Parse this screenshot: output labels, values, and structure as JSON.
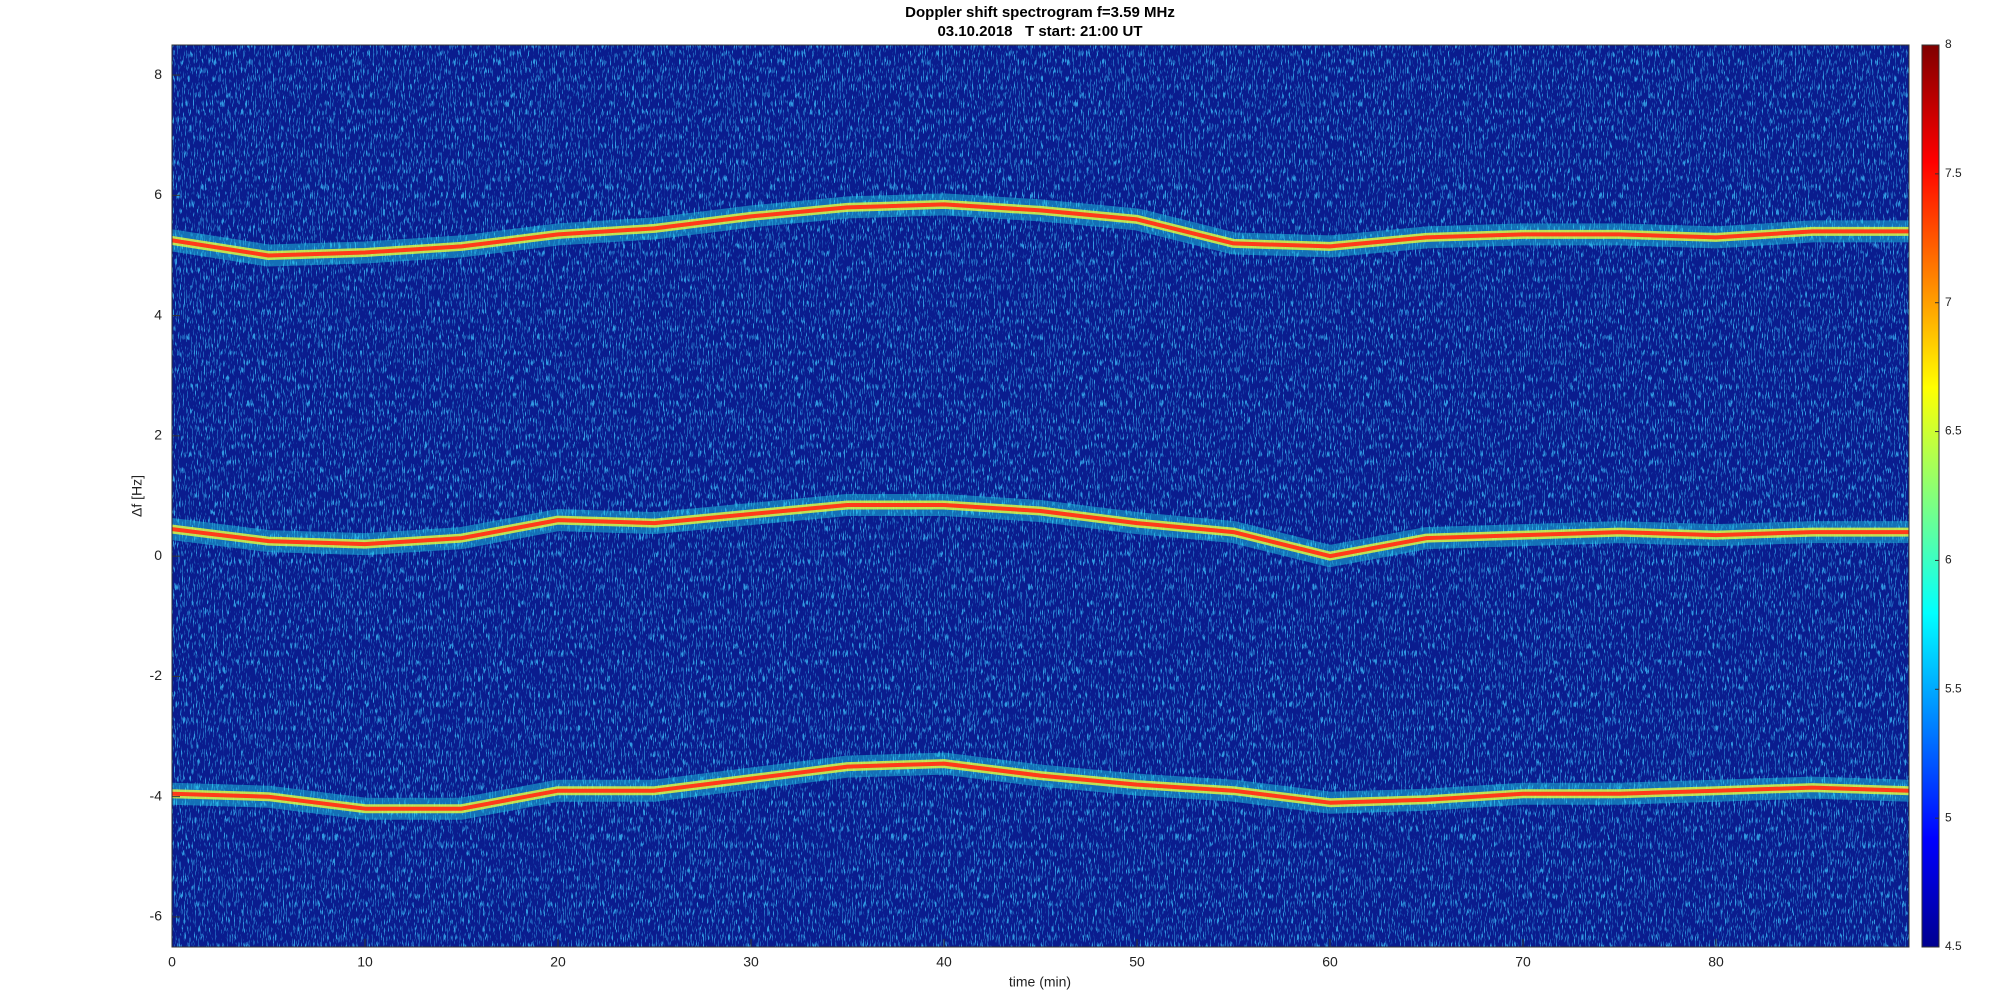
{
  "chart_data": {
    "type": "line",
    "title": "Doppler shift spectrogram f=3.59 MHz",
    "subtitle": "03.10.2018   T start: 21:00 UT",
    "x_label": "time (min)",
    "y_label": "Δf [Hz]",
    "x": [
      0,
      5,
      10,
      15,
      20,
      25,
      30,
      35,
      40,
      45,
      50,
      55,
      60,
      65,
      70,
      75,
      80,
      85,
      90
    ],
    "series": [
      {
        "color": "#ff3a1a",
        "values": [
          5.25,
          5.0,
          5.05,
          5.15,
          5.35,
          5.45,
          5.65,
          5.8,
          5.85,
          5.75,
          5.6,
          5.2,
          5.15,
          5.3,
          5.35,
          5.35,
          5.3,
          5.4,
          5.4
        ]
      },
      {
        "color": "#ff3a1a",
        "values": [
          0.45,
          0.25,
          0.2,
          0.3,
          0.6,
          0.55,
          0.7,
          0.85,
          0.85,
          0.75,
          0.55,
          0.4,
          0.0,
          0.3,
          0.35,
          0.4,
          0.35,
          0.4,
          0.4
        ]
      },
      {
        "color": "#ff3a1a",
        "values": [
          -3.95,
          -4.0,
          -4.2,
          -4.2,
          -3.9,
          -3.9,
          -3.7,
          -3.5,
          -3.45,
          -3.65,
          -3.8,
          -3.9,
          -4.1,
          -4.05,
          -3.95,
          -3.95,
          -3.9,
          -3.85,
          -3.9
        ]
      }
    ],
    "xlim": [
      0,
      90
    ],
    "xticks": [
      0,
      10,
      20,
      30,
      40,
      50,
      60,
      70,
      80
    ],
    "ylim": [
      -6.5,
      8.5
    ],
    "yticks": [
      -6,
      -4,
      -2,
      0,
      2,
      4,
      6,
      8
    ],
    "clim": [
      4.5,
      8
    ],
    "cticks": [
      4.5,
      5,
      5.5,
      6,
      6.5,
      7,
      7.5,
      8
    ]
  }
}
